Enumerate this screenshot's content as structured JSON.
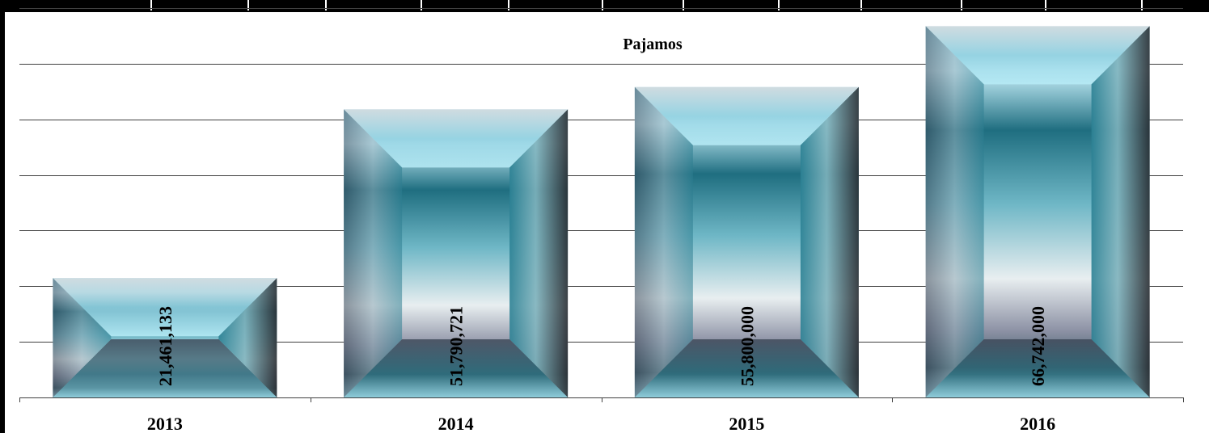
{
  "chart_data": {
    "type": "bar",
    "title": "Pajamos",
    "categories": [
      "2013",
      "2014",
      "2015",
      "2016"
    ],
    "values": [
      21461133,
      51790721,
      55800000,
      66742000
    ],
    "value_labels": [
      "21,461,133",
      "51,790,721",
      "55,800,000",
      "66,742,000"
    ],
    "ylim": [
      0,
      70000000
    ],
    "y_gridline_step": 10000000,
    "y_tick_labels_visible": false,
    "grid": true,
    "legend": "none",
    "bar_style": "beveled teal gradient",
    "colors": {
      "bar_dark": "#1f6e80",
      "bar_mid": "#4aa3b5",
      "bar_light": "#bfeaf5",
      "bar_pale": "#e8eef0",
      "bar_shadow": "#3a3f4a",
      "gridline": "#404040",
      "frame": "#000000"
    }
  }
}
